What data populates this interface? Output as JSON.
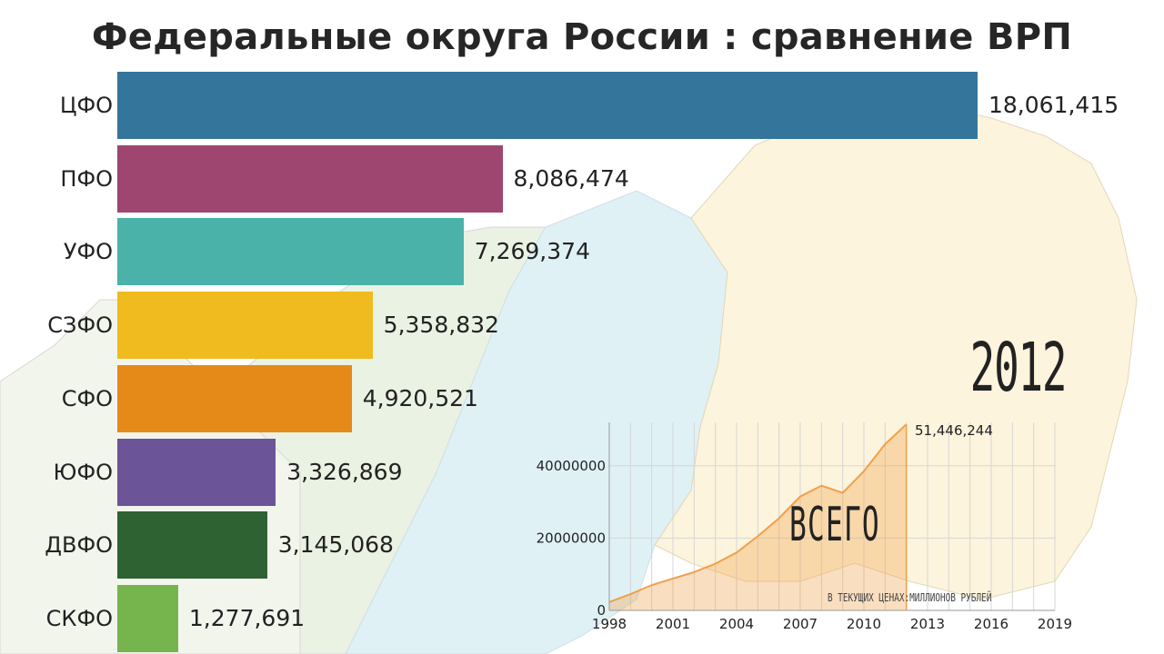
{
  "title": "Федеральные округа России : сравнение ВРП",
  "year": "2012",
  "chart_data": [
    {
      "type": "bar",
      "orientation": "horizontal",
      "title": "Федеральные округа России : сравнение ВРП",
      "categories": [
        "ЦФО",
        "ПФО",
        "УФО",
        "СЗФО",
        "СФО",
        "ЮФО",
        "ДВФО",
        "СКФО"
      ],
      "values": [
        18061415,
        8086474,
        7269374,
        5358832,
        4920521,
        3326869,
        3145068,
        1277691
      ],
      "value_labels": [
        "18,061,415",
        "8,086,474",
        "7,269,374",
        "5,358,832",
        "4,920,521",
        "3,326,869",
        "3,145,068",
        "1,277,691"
      ],
      "colors": [
        "#34769b",
        "#9e466f",
        "#4bb2aa",
        "#efbb1f",
        "#e58a18",
        "#6c5499",
        "#2e6232",
        "#76b54d"
      ],
      "xlim": [
        0,
        18061415
      ]
    },
    {
      "type": "area",
      "title": "ВСЕГО",
      "subtitle": "В ТЕКУЩИХ ЦЕНАХ:МИЛЛИОНОВ РУБЛЕЙ",
      "x": [
        1998,
        1999,
        2000,
        2001,
        2002,
        2003,
        2004,
        2005,
        2006,
        2007,
        2008,
        2009,
        2010,
        2011,
        2012
      ],
      "values": [
        2300000,
        4500000,
        7000000,
        8800000,
        10600000,
        12900000,
        16000000,
        20500000,
        25500000,
        31500000,
        34500000,
        32500000,
        38500000,
        46000000,
        51446244
      ],
      "x_ticks": [
        "1998",
        "2001",
        "2004",
        "2007",
        "2010",
        "2013",
        "2016",
        "2019"
      ],
      "y_ticks": [
        "0",
        "20000000",
        "40000000"
      ],
      "xlim": [
        1998,
        2019
      ],
      "ylim": [
        0,
        52000000
      ],
      "end_label": "51,446,244",
      "color": "#f0a04b",
      "grid": true
    }
  ]
}
